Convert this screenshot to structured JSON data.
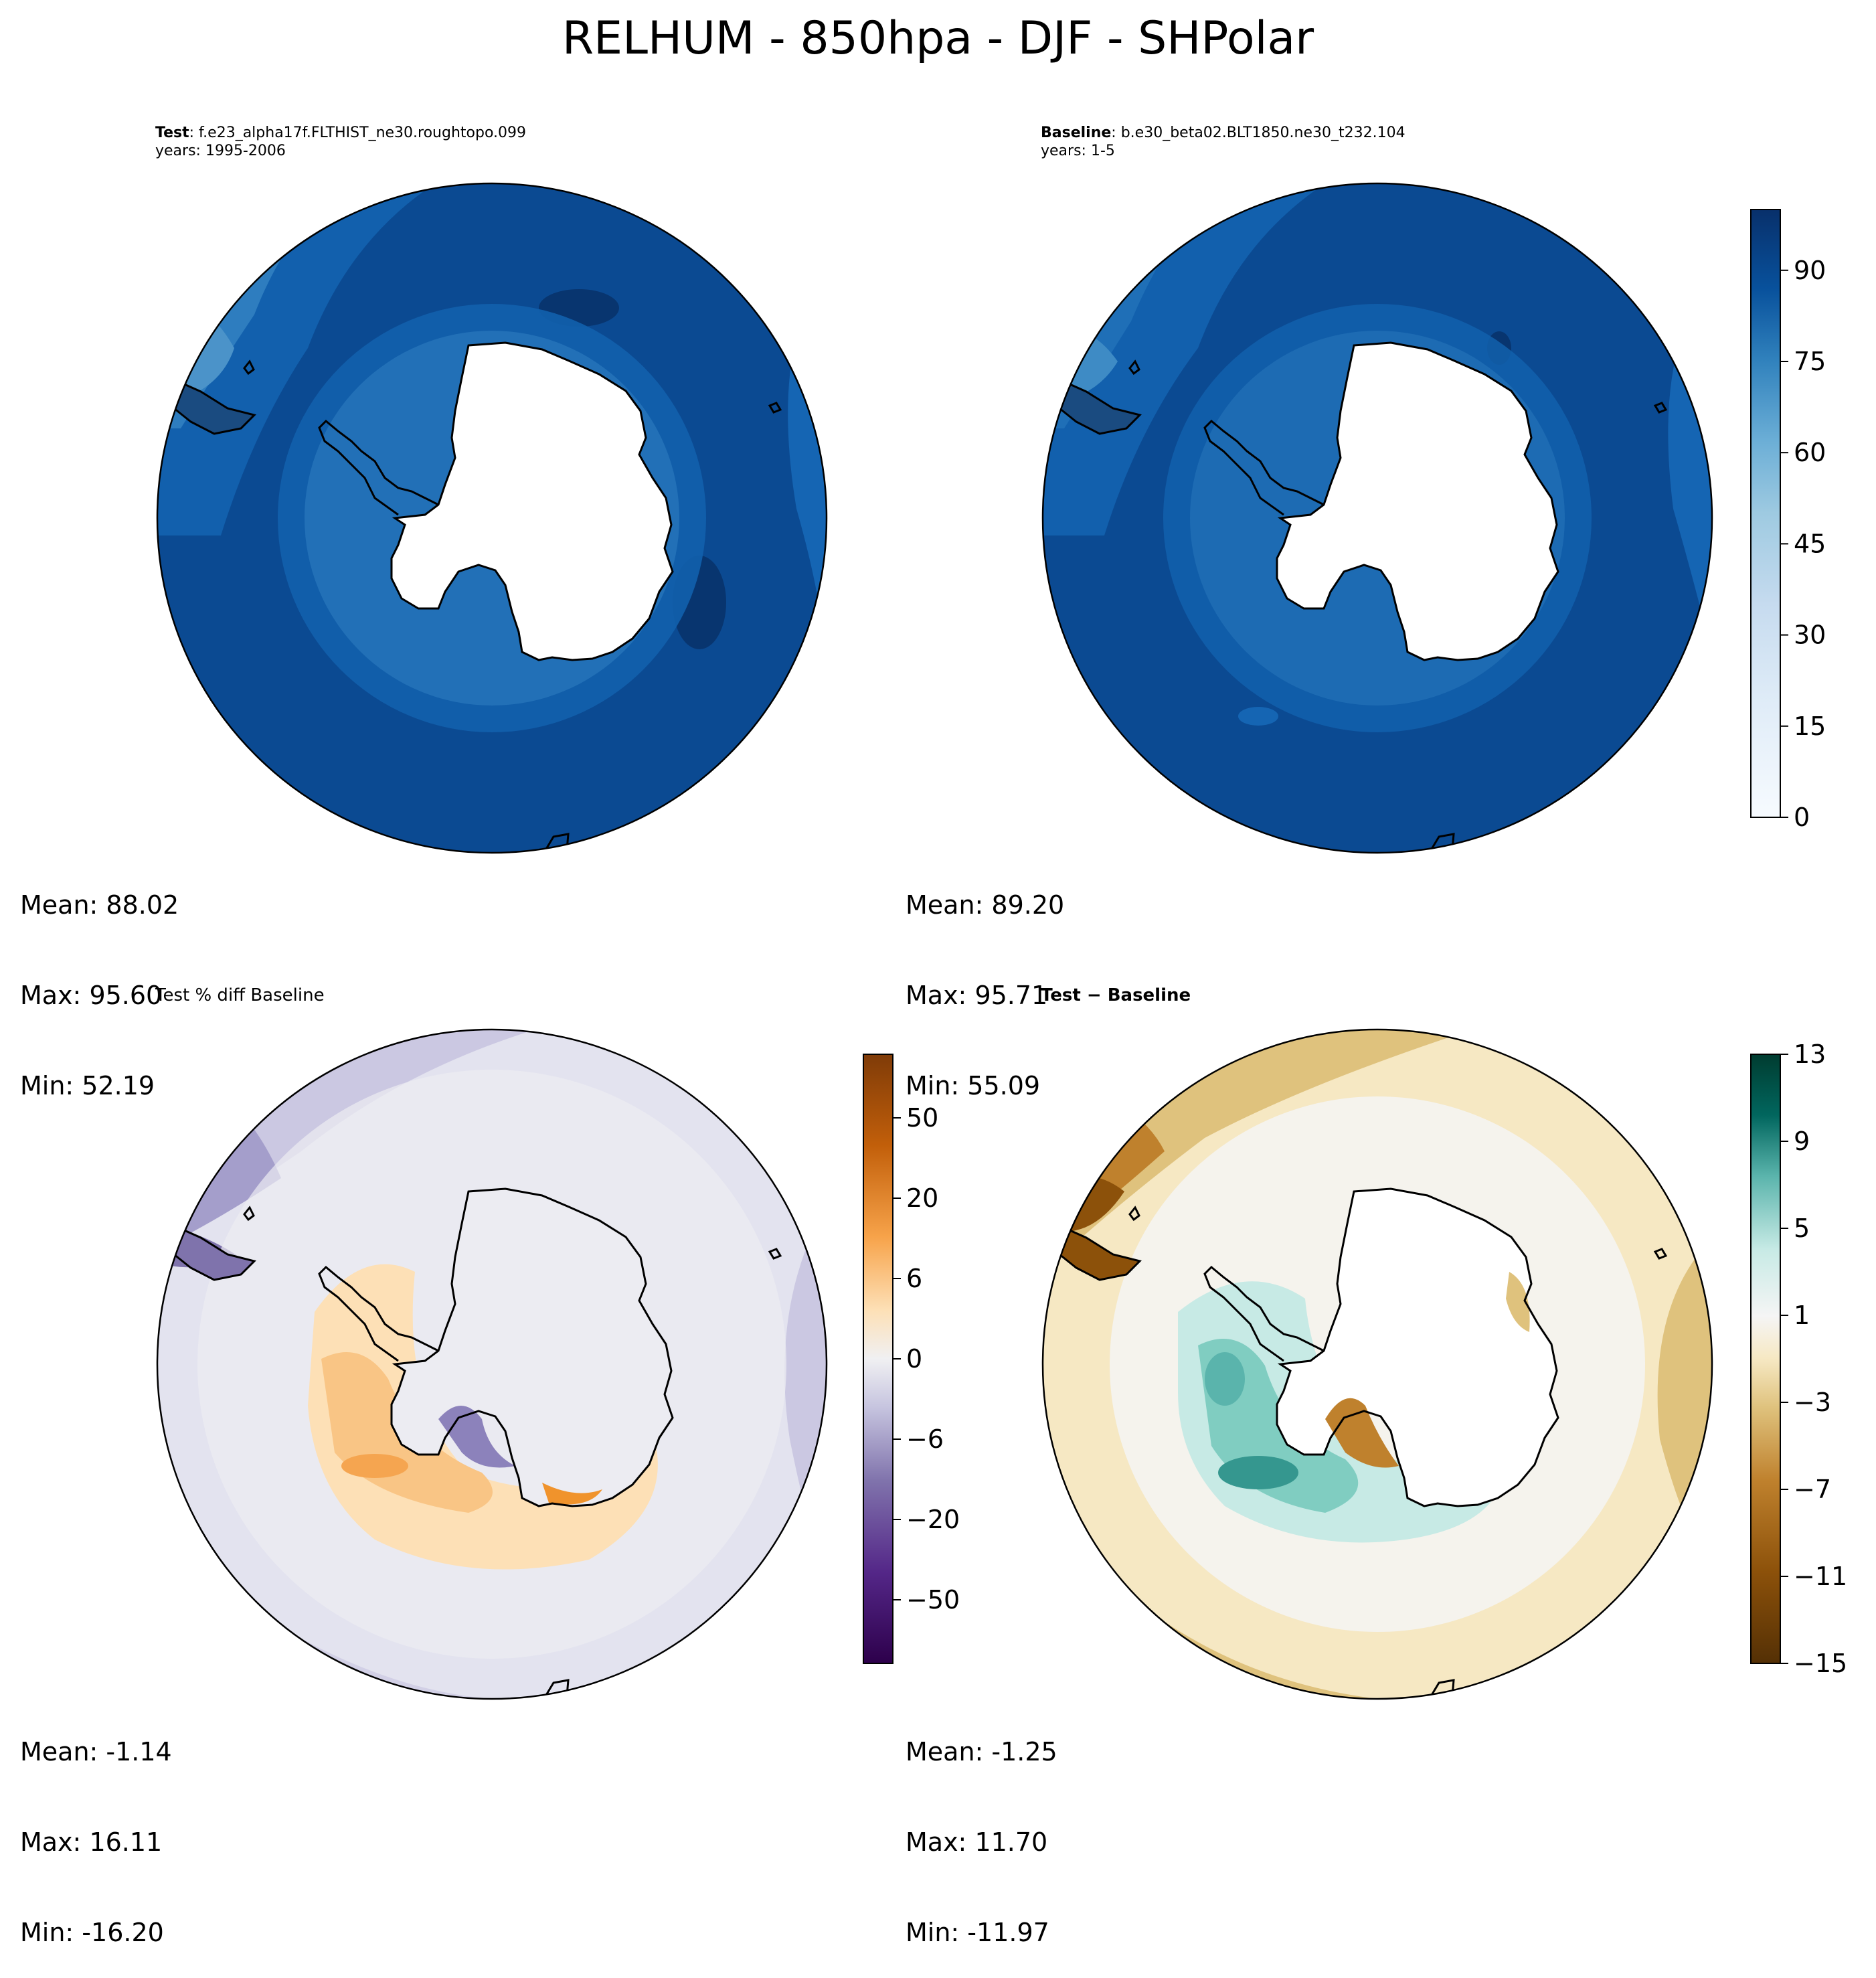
{
  "figure": {
    "title": "RELHUM - 850hpa - DJF - SHPolar"
  },
  "panels": {
    "test": {
      "label": "Test",
      "case": ": f.e23_alpha17f.FLTHIST_ne30.roughtopo.099",
      "years": "years: 1995-2006",
      "stats": {
        "mean": "Mean: 88.02",
        "max": "Max: 95.60",
        "min": "Min: 52.19"
      }
    },
    "baseline": {
      "label": "Baseline",
      "case": ": b.e30_beta02.BLT1850.ne30_t232.104",
      "years": "years: 1-5",
      "stats": {
        "mean": "Mean: 89.20",
        "max": "Max: 95.71",
        "min": "Min: 55.09"
      }
    },
    "pct_diff": {
      "title": "Test % diff Baseline",
      "stats": {
        "mean": "Mean: -1.14",
        "max": "Max: 16.11",
        "min": "Min: -16.20"
      }
    },
    "diff": {
      "title": "Test − Baseline",
      "stats": {
        "mean": "Mean: -1.25",
        "max": "Max: 11.70",
        "min": "Min: -11.97"
      }
    }
  },
  "chart_data": [
    {
      "type": "heatmap",
      "projection": "south polar stereographic",
      "panel": "Test",
      "colormap": "Blues",
      "levels": [
        0,
        5,
        10,
        15,
        20,
        25,
        30,
        35,
        40,
        45,
        50,
        55,
        60,
        65,
        70,
        75,
        80,
        85,
        90,
        95,
        100
      ],
      "mean": 88.02,
      "max": 95.6,
      "min": 52.19
    },
    {
      "type": "heatmap",
      "projection": "south polar stereographic",
      "panel": "Baseline",
      "colormap": "Blues",
      "levels": [
        0,
        5,
        10,
        15,
        20,
        25,
        30,
        35,
        40,
        45,
        50,
        55,
        60,
        65,
        70,
        75,
        80,
        85,
        90,
        95,
        100
      ],
      "colorbar_ticks": [
        "0",
        "15",
        "30",
        "45",
        "60",
        "75",
        "90"
      ],
      "mean": 89.2,
      "max": 95.71,
      "min": 55.09
    },
    {
      "type": "heatmap",
      "projection": "south polar stereographic",
      "panel": "Test % diff Baseline",
      "colormap": "PuOr_r",
      "colorbar_ticks": [
        "−50",
        "−20",
        "−6",
        "0",
        "6",
        "20",
        "50"
      ],
      "mean": -1.14,
      "max": 16.11,
      "min": -16.2
    },
    {
      "type": "heatmap",
      "projection": "south polar stereographic",
      "panel": "Test − Baseline",
      "colormap": "BrBG",
      "levels": [
        -15,
        -13,
        -11,
        -9,
        -7,
        -5,
        -3,
        -1,
        1,
        3,
        5,
        7,
        9,
        11,
        13
      ],
      "colorbar_ticks": [
        "−15",
        "−11",
        "−7",
        "−3",
        "1",
        "5",
        "9",
        "13"
      ],
      "mean": -1.25,
      "max": 11.7,
      "min": -11.97
    }
  ]
}
